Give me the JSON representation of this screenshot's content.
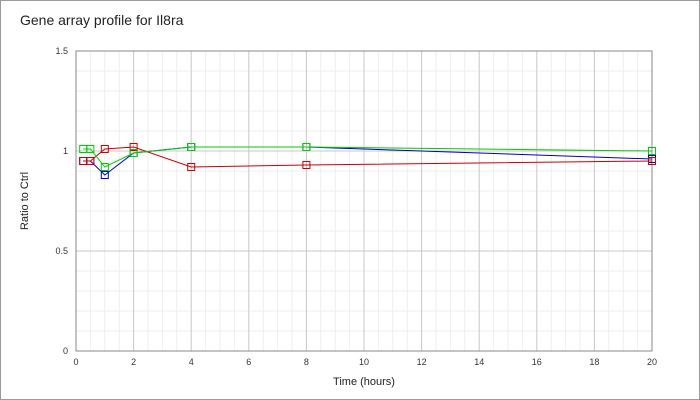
{
  "chart_data": {
    "type": "line",
    "title": "Gene array profile for Il8ra",
    "xlabel": "Time (hours)",
    "ylabel": "Ratio to Ctrl",
    "xlim": [
      0,
      20
    ],
    "ylim": [
      0,
      1.5
    ],
    "x_ticks": [
      "0",
      "2",
      "4",
      "6",
      "8",
      "10",
      "12",
      "14",
      "16",
      "18",
      "20"
    ],
    "y_ticks": [
      "0",
      "0.5",
      "1",
      "1.5"
    ],
    "x_tick_values": [
      0,
      2,
      4,
      6,
      8,
      10,
      12,
      14,
      16,
      18,
      20
    ],
    "y_tick_values": [
      0,
      0.5,
      1,
      1.5
    ],
    "grid": true,
    "marker": "open-square",
    "series": [
      {
        "color": "#0000cc",
        "x": [
          0.25,
          0.5,
          1,
          2,
          4,
          8,
          20
        ],
        "y": [
          0.95,
          0.95,
          0.88,
          0.99,
          1.02,
          1.02,
          0.96
        ]
      },
      {
        "color": "#cc0000",
        "x": [
          0.25,
          0.5,
          1,
          2,
          4,
          8,
          20
        ],
        "y": [
          0.95,
          0.95,
          1.01,
          1.02,
          0.92,
          0.93,
          0.95
        ]
      },
      {
        "color": "#00cc00",
        "x": [
          0.25,
          0.5,
          1,
          2,
          4,
          8,
          20
        ],
        "y": [
          1.01,
          1.01,
          0.92,
          0.99,
          1.02,
          1.02,
          1.0
        ]
      }
    ]
  }
}
